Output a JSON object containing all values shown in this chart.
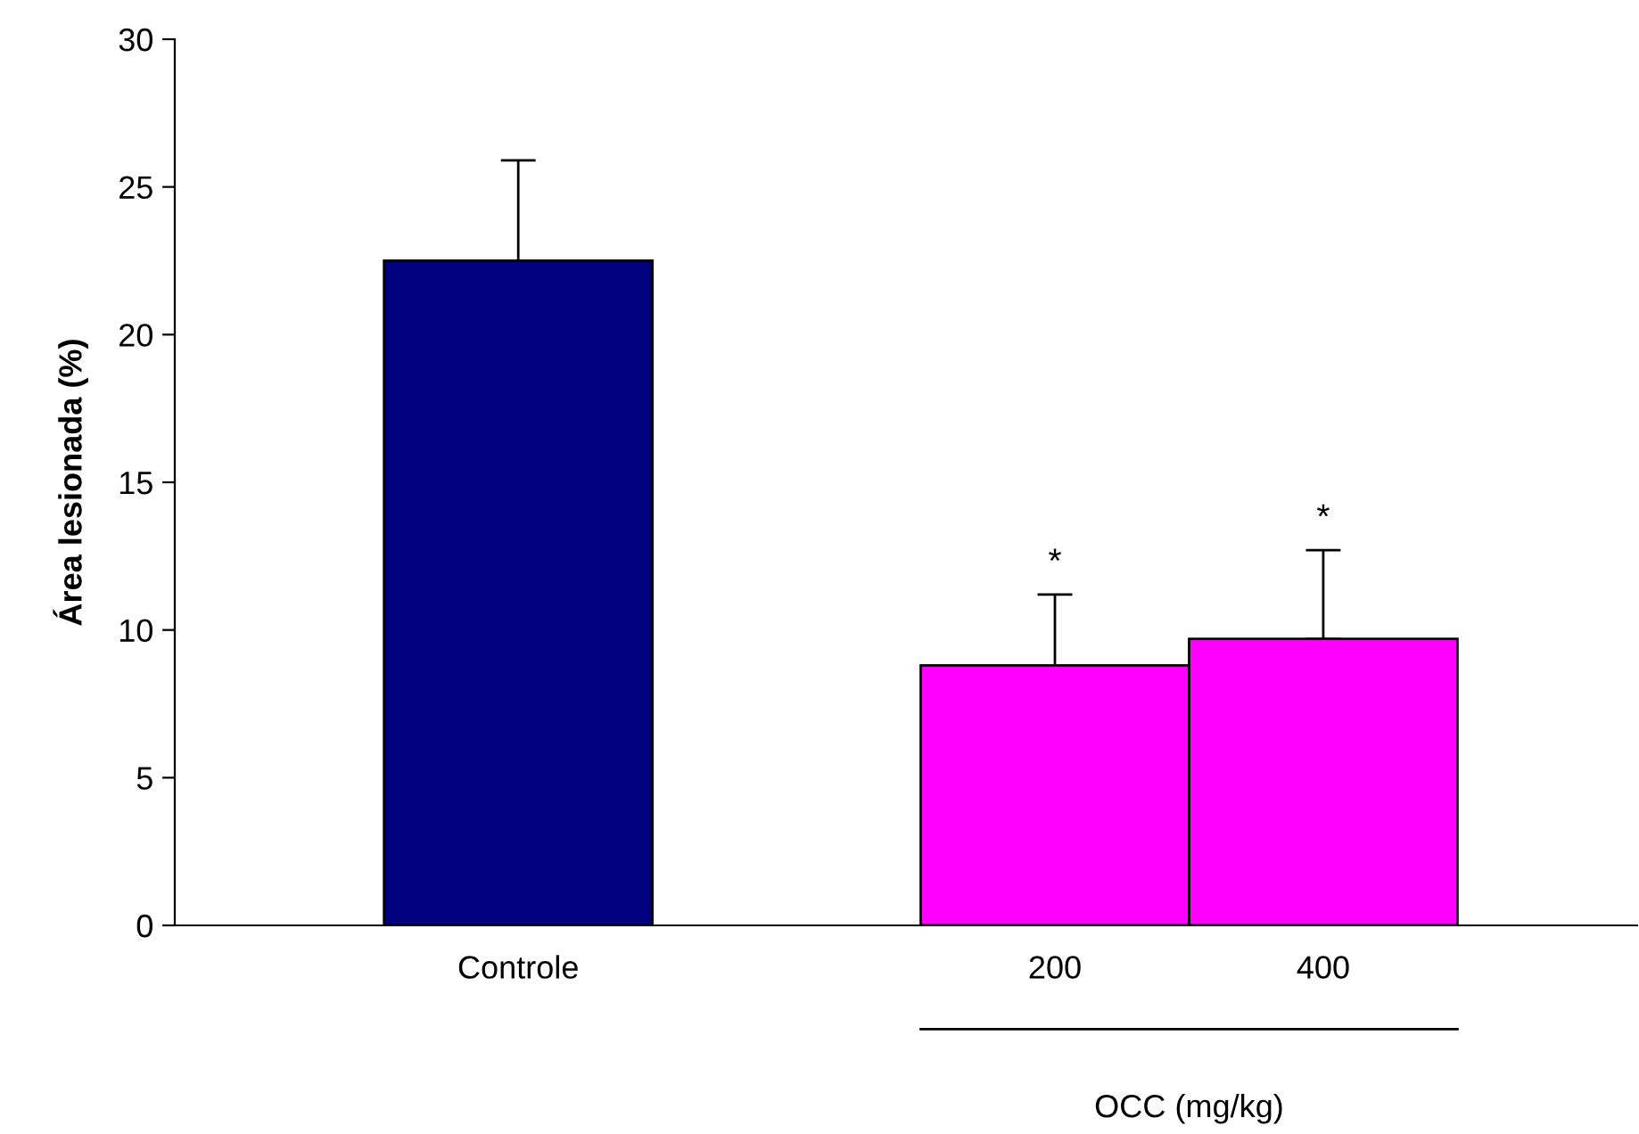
{
  "chart_data": {
    "type": "bar",
    "ylabel": "Área lesionada (%)",
    "categories": [
      "Controle",
      null,
      "200",
      "400"
    ],
    "values": [
      22.5,
      null,
      8.8,
      9.7
    ],
    "colors": [
      "#000080",
      "#ffffff",
      "#ff00ff",
      "#ff00ff"
    ],
    "errors": [
      [
        22.5,
        25.9
      ],
      null,
      [
        8.8,
        11.2
      ],
      [
        9.7,
        12.7
      ]
    ],
    "ylim": [
      0,
      30
    ],
    "yticks": [
      0,
      5,
      10,
      15,
      20,
      25,
      30
    ],
    "grid": false,
    "legend": false,
    "annotations": [
      {
        "text": "*",
        "x": "200",
        "y": 11.2
      },
      {
        "text": "*",
        "x": "400",
        "y": 12.7
      },
      "OCC (mg/kg)"
    ]
  }
}
